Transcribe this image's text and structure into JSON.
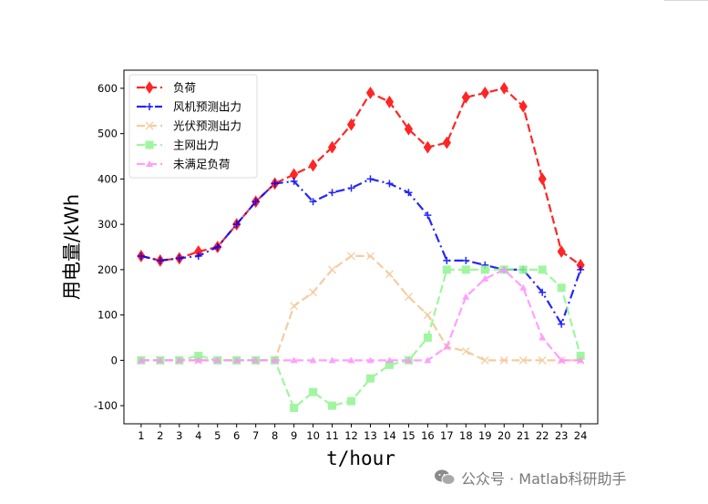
{
  "chart_data": {
    "type": "line",
    "xlabel": "t/hour",
    "ylabel": "用电量/kWh",
    "x": [
      1,
      2,
      3,
      4,
      5,
      6,
      7,
      8,
      9,
      10,
      11,
      12,
      13,
      14,
      15,
      16,
      17,
      18,
      19,
      20,
      21,
      22,
      23,
      24
    ],
    "xlim": [
      0.1,
      24.9
    ],
    "ylim": [
      -140,
      640
    ],
    "yticks": [
      -100,
      0,
      100,
      200,
      300,
      400,
      500,
      600
    ],
    "grid": false,
    "legend_position": "top-left",
    "series": [
      {
        "name": "负荷",
        "color": "#ff0000",
        "dash": "dashed",
        "marker": "diamond",
        "values": [
          230,
          220,
          225,
          240,
          250,
          300,
          350,
          390,
          410,
          430,
          470,
          520,
          590,
          570,
          510,
          470,
          480,
          580,
          590,
          600,
          560,
          400,
          240,
          210
        ]
      },
      {
        "name": "风机预测出力",
        "color": "#0000ff",
        "dash": "dashdot",
        "marker": "plus",
        "values": [
          230,
          220,
          225,
          230,
          250,
          300,
          350,
          390,
          395,
          350,
          370,
          380,
          400,
          390,
          370,
          320,
          220,
          220,
          210,
          200,
          200,
          150,
          80,
          200
        ]
      },
      {
        "name": "光伏预测出力",
        "color": "#f5c490",
        "dash": "dashed",
        "marker": "x",
        "values": [
          0,
          0,
          0,
          0,
          0,
          0,
          0,
          0,
          120,
          150,
          200,
          230,
          230,
          190,
          140,
          100,
          30,
          20,
          0,
          0,
          0,
          0,
          0,
          0
        ]
      },
      {
        "name": "主网出力",
        "color": "#90f590",
        "dash": "dashed",
        "marker": "square",
        "values": [
          0,
          0,
          0,
          10,
          0,
          0,
          0,
          0,
          -105,
          -70,
          -100,
          -90,
          -40,
          -10,
          0,
          50,
          200,
          200,
          200,
          200,
          200,
          200,
          160,
          10
        ]
      },
      {
        "name": "未满足负荷",
        "color": "#ff90ff",
        "dash": "dashed",
        "marker": "triangle",
        "values": [
          0,
          0,
          0,
          0,
          0,
          0,
          0,
          0,
          0,
          0,
          0,
          0,
          0,
          0,
          0,
          0,
          30,
          140,
          180,
          200,
          160,
          50,
          0,
          0
        ]
      }
    ]
  },
  "watermark": {
    "text": "公众号 · Matlab科研助手"
  }
}
